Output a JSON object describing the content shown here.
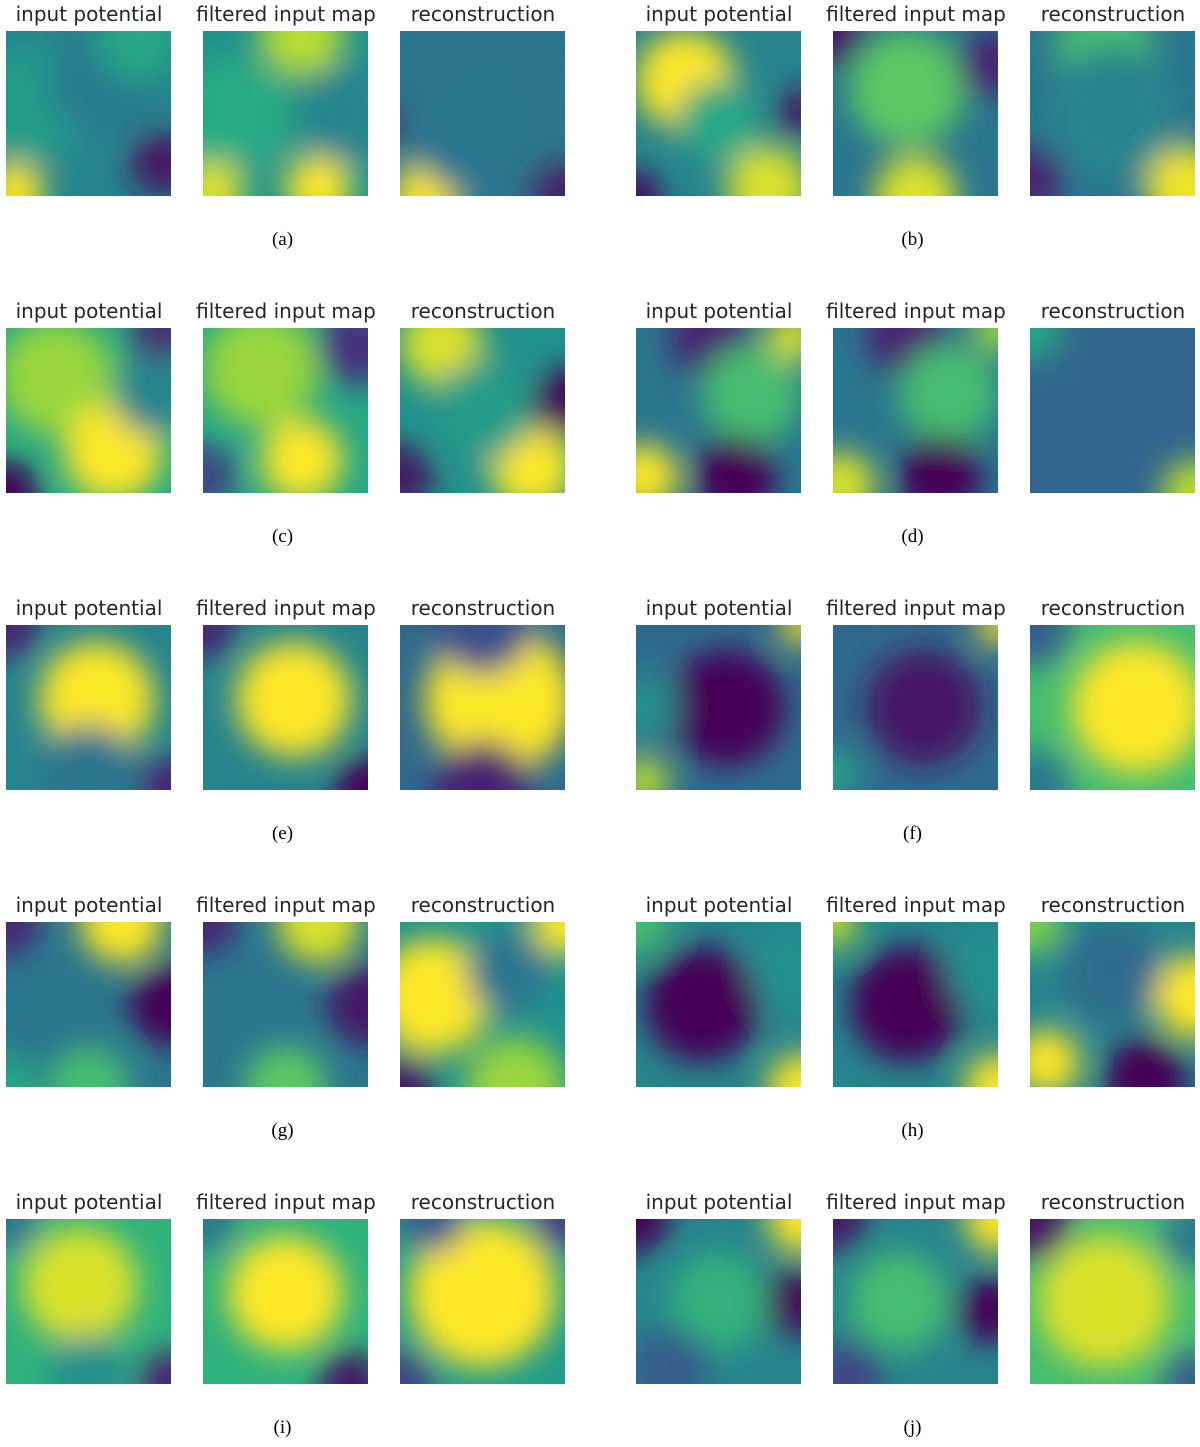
{
  "titles": [
    "input potential",
    "filtered input map",
    "reconstruction"
  ],
  "colormap": "viridis",
  "colors": {
    "dark": "#440154",
    "mid": "#21918c",
    "bright": "#fde725"
  },
  "panels": [
    {
      "caption": "(a)"
    },
    {
      "caption": "(b)"
    },
    {
      "caption": "(c)"
    },
    {
      "caption": "(d)"
    },
    {
      "caption": "(e)"
    },
    {
      "caption": "(f)"
    },
    {
      "caption": "(g)"
    },
    {
      "caption": "(h)"
    },
    {
      "caption": "(i)"
    },
    {
      "caption": "(j)"
    }
  ]
}
